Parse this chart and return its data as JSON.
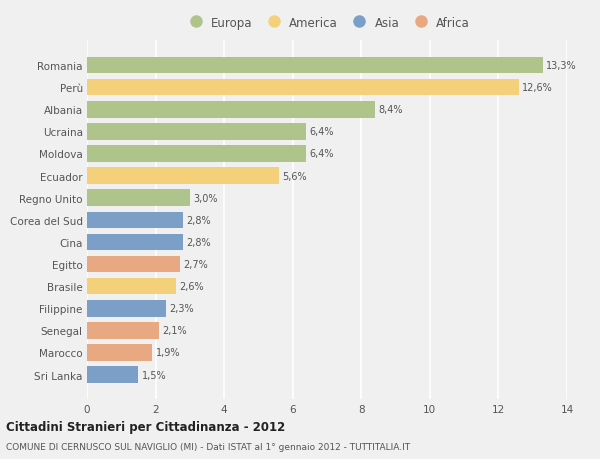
{
  "categories": [
    "Romania",
    "Perù",
    "Albania",
    "Ucraina",
    "Moldova",
    "Ecuador",
    "Regno Unito",
    "Corea del Sud",
    "Cina",
    "Egitto",
    "Brasile",
    "Filippine",
    "Senegal",
    "Marocco",
    "Sri Lanka"
  ],
  "values": [
    13.3,
    12.6,
    8.4,
    6.4,
    6.4,
    5.6,
    3.0,
    2.8,
    2.8,
    2.7,
    2.6,
    2.3,
    2.1,
    1.9,
    1.5
  ],
  "labels": [
    "13,3%",
    "12,6%",
    "8,4%",
    "6,4%",
    "6,4%",
    "5,6%",
    "3,0%",
    "2,8%",
    "2,8%",
    "2,7%",
    "2,6%",
    "2,3%",
    "2,1%",
    "1,9%",
    "1,5%"
  ],
  "colors": [
    "#aec48b",
    "#f5d07a",
    "#aec48b",
    "#aec48b",
    "#aec48b",
    "#f5d07a",
    "#aec48b",
    "#7b9fc7",
    "#7b9fc7",
    "#e8a882",
    "#f5d07a",
    "#7b9fc7",
    "#e8a882",
    "#e8a882",
    "#7b9fc7"
  ],
  "continent_colors": {
    "Europa": "#aec48b",
    "America": "#f5d07a",
    "Asia": "#7b9fc7",
    "Africa": "#e8a882"
  },
  "title": "Cittadini Stranieri per Cittadinanza - 2012",
  "subtitle": "COMUNE DI CERNUSCO SUL NAVIGLIO (MI) - Dati ISTAT al 1° gennaio 2012 - TUTTITALIA.IT",
  "xlim": [
    0,
    14
  ],
  "xticks": [
    0,
    2,
    4,
    6,
    8,
    10,
    12,
    14
  ],
  "background_color": "#f0f0f0",
  "grid_color": "#ffffff",
  "bar_height": 0.75
}
